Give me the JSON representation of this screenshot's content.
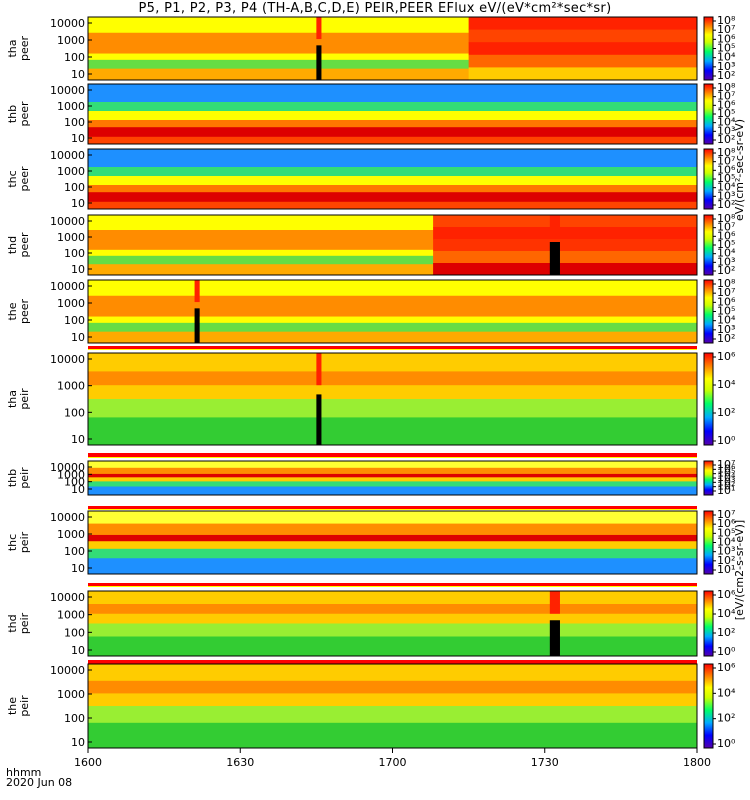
{
  "title": "P5, P1, P2, P3, P4 (TH-A,B,C,D,E) PEIR,PEER EFlux eV/(eV*cm²*sec*sr)",
  "time_axis": {
    "ticks": [
      "1600",
      "1630",
      "1700",
      "1730",
      "1800"
    ],
    "corner_label": "hhmm",
    "date": "2020 Jun 08"
  },
  "colorbar_label_peer": "eV/(cm²-sec-sr-eV)",
  "colorbar_label_peir": "[eV/(cm2-s-sr-eV)]",
  "colors": {
    "background": "#ffffff",
    "stripe_red": "#ff0000",
    "stripe_yellow": "#ffff00",
    "fill_black": "#000000"
  },
  "chart_data": {
    "type": "heatmap",
    "x_unit": "hhmm",
    "x_range": [
      "1600",
      "1800"
    ],
    "y_scale": "log",
    "panels": [
      {
        "id": "tha_peer",
        "probe": "tha",
        "kind": "peer",
        "yticks": [
          "10000",
          "1000",
          "100",
          "10"
        ],
        "cticks": [
          "10⁸",
          "10⁷",
          "10⁶",
          "10⁵",
          "10⁴",
          "10³",
          "10²"
        ],
        "bands": [
          [
            0,
            0.25,
            "#ffff00"
          ],
          [
            0.25,
            0.58,
            "#ff8c00"
          ],
          [
            0.58,
            0.68,
            "#ffff00"
          ],
          [
            0.68,
            0.82,
            "#66dd44"
          ],
          [
            0.82,
            1,
            "#ffaa00"
          ]
        ],
        "gaps": [
          [
            1645,
            1646
          ]
        ],
        "shift": {
          "start": 1715,
          "colors": [
            "#ff2200",
            "#ff4400",
            "#ff2200",
            "#ff6600",
            "#ffcc00"
          ]
        }
      },
      {
        "id": "thb_peer",
        "probe": "thb",
        "kind": "peer",
        "yticks": [
          "10000",
          "1000",
          "100",
          "10"
        ],
        "cticks": [
          "10⁸",
          "10⁷",
          "10⁶",
          "10⁵",
          "10⁴",
          "10³",
          "10²"
        ],
        "bands": [
          [
            0,
            0.3,
            "#1e90ff"
          ],
          [
            0.3,
            0.45,
            "#33dd77"
          ],
          [
            0.45,
            0.6,
            "#ffff00"
          ],
          [
            0.6,
            0.72,
            "#ff7700"
          ],
          [
            0.72,
            0.88,
            "#dd0000"
          ],
          [
            0.88,
            1,
            "#ff4400"
          ]
        ],
        "gaps": [],
        "shift": null
      },
      {
        "id": "thc_peer",
        "probe": "thc",
        "kind": "peer",
        "yticks": [
          "10000",
          "1000",
          "100",
          "10"
        ],
        "cticks": [
          "10⁸",
          "10⁷",
          "10⁶",
          "10⁵",
          "10⁴",
          "10³",
          "10²"
        ],
        "bands": [
          [
            0,
            0.3,
            "#1e90ff"
          ],
          [
            0.3,
            0.45,
            "#33dd77"
          ],
          [
            0.45,
            0.6,
            "#ffff00"
          ],
          [
            0.6,
            0.72,
            "#ff7700"
          ],
          [
            0.72,
            0.88,
            "#dd0000"
          ],
          [
            0.88,
            1,
            "#ff4400"
          ]
        ],
        "gaps": [],
        "shift": null
      },
      {
        "id": "thd_peer",
        "probe": "thd",
        "kind": "peer",
        "yticks": [
          "10000",
          "1000",
          "100",
          "10"
        ],
        "cticks": [
          "10⁸",
          "10⁷",
          "10⁶",
          "10⁵",
          "10⁴",
          "10³",
          "10²"
        ],
        "bands": [
          [
            0,
            0.25,
            "#ffff00"
          ],
          [
            0.25,
            0.58,
            "#ff8c00"
          ],
          [
            0.58,
            0.68,
            "#ffff00"
          ],
          [
            0.68,
            0.82,
            "#66dd44"
          ],
          [
            0.82,
            1,
            "#ffaa00"
          ]
        ],
        "gaps": [
          [
            1731,
            1733
          ]
        ],
        "shift": {
          "start": 1708,
          "colors": [
            "#ff4400",
            "#ff2200",
            "#ff3300",
            "#ff6600",
            "#dd0000"
          ]
        }
      },
      {
        "id": "the_peer",
        "probe": "the",
        "kind": "peer",
        "yticks": [
          "10000",
          "1000",
          "100",
          "10"
        ],
        "cticks": [
          "10⁸",
          "10⁷",
          "10⁶",
          "10⁵",
          "10⁴",
          "10³",
          "10²"
        ],
        "bands": [
          [
            0,
            0.25,
            "#ffff00"
          ],
          [
            0.25,
            0.58,
            "#ff8c00"
          ],
          [
            0.58,
            0.68,
            "#ffff00"
          ],
          [
            0.68,
            0.82,
            "#66dd44"
          ],
          [
            0.82,
            1,
            "#ffaa00"
          ]
        ],
        "gaps": [
          [
            1621,
            1622
          ]
        ],
        "shift": null
      },
      {
        "id": "tha_peir",
        "probe": "tha",
        "kind": "peir",
        "yticks": [
          "10000",
          "1000",
          "100",
          "10"
        ],
        "cticks": [
          "10⁶",
          "10⁴",
          "10²",
          "10⁰"
        ],
        "bands": [
          [
            0,
            0.2,
            "#ffcc00"
          ],
          [
            0.2,
            0.35,
            "#ff8c00"
          ],
          [
            0.35,
            0.5,
            "#ffcc00"
          ],
          [
            0.5,
            0.7,
            "#99ee33"
          ],
          [
            0.7,
            1,
            "#33cc33"
          ]
        ],
        "gaps": [
          [
            1645,
            1646
          ]
        ],
        "shift": null
      },
      {
        "id": "thb_peir",
        "probe": "thb",
        "kind": "peir",
        "yticks": [
          "10000",
          "1000",
          "100",
          "10"
        ],
        "cticks": [
          "10⁷",
          "10⁶",
          "10⁵",
          "10⁴",
          "10³",
          "10²",
          "10¹"
        ],
        "bands": [
          [
            0,
            0.2,
            "#ffff33"
          ],
          [
            0.2,
            0.38,
            "#ff8c00"
          ],
          [
            0.38,
            0.48,
            "#dd0000"
          ],
          [
            0.48,
            0.6,
            "#ffcc00"
          ],
          [
            0.6,
            0.75,
            "#33dd77"
          ],
          [
            0.75,
            1,
            "#1e90ff"
          ]
        ],
        "gaps": [],
        "shift": null
      },
      {
        "id": "thc_peir",
        "probe": "thc",
        "kind": "peir",
        "yticks": [
          "10000",
          "1000",
          "100",
          "10"
        ],
        "cticks": [
          "10⁷",
          "10⁶",
          "10⁵",
          "10⁴",
          "10³",
          "10²",
          "10¹"
        ],
        "bands": [
          [
            0,
            0.2,
            "#ffff33"
          ],
          [
            0.2,
            0.38,
            "#ff8c00"
          ],
          [
            0.38,
            0.48,
            "#dd0000"
          ],
          [
            0.48,
            0.6,
            "#ffcc00"
          ],
          [
            0.6,
            0.75,
            "#33dd77"
          ],
          [
            0.75,
            1,
            "#1e90ff"
          ]
        ],
        "gaps": [],
        "shift": null
      },
      {
        "id": "thd_peir",
        "probe": "thd",
        "kind": "peir",
        "yticks": [
          "10000",
          "1000",
          "100",
          "10"
        ],
        "cticks": [
          "10⁶",
          "10⁴",
          "10²",
          "10⁰"
        ],
        "bands": [
          [
            0,
            0.2,
            "#ffcc00"
          ],
          [
            0.2,
            0.35,
            "#ff8c00"
          ],
          [
            0.35,
            0.5,
            "#ffcc00"
          ],
          [
            0.5,
            0.7,
            "#99ee33"
          ],
          [
            0.7,
            1,
            "#33cc33"
          ]
        ],
        "gaps": [
          [
            1731,
            1733
          ]
        ],
        "shift": null
      },
      {
        "id": "the_peir",
        "probe": "the",
        "kind": "peir",
        "yticks": [
          "10000",
          "1000",
          "100",
          "10"
        ],
        "cticks": [
          "10⁶",
          "10⁴",
          "10²",
          "10⁰"
        ],
        "bands": [
          [
            0,
            0.2,
            "#ffcc00"
          ],
          [
            0.2,
            0.35,
            "#ff8c00"
          ],
          [
            0.35,
            0.5,
            "#ffcc00"
          ],
          [
            0.5,
            0.7,
            "#99ee33"
          ],
          [
            0.7,
            1,
            "#33cc33"
          ]
        ],
        "gaps": [],
        "shift": null
      }
    ]
  }
}
